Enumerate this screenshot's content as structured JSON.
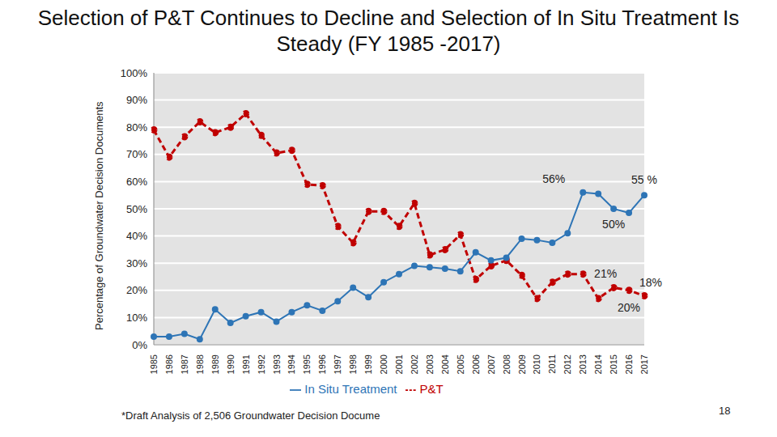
{
  "chart_data": {
    "type": "line",
    "title": "Selection of P&T Continues to Decline and Selection of In Situ Treatment Is Steady  (FY 1985 -2017)",
    "y_label": "Percentage of Groundwater Decision Documents",
    "footnote": "*Draft Analysis of 2,506 Groundwater Decision Docume",
    "page_number": "18",
    "categories": [
      "1985",
      "1986",
      "1987",
      "1988",
      "1989",
      "1990",
      "1991",
      "1992",
      "1993",
      "1994",
      "1995",
      "1996",
      "1997",
      "1998",
      "1999",
      "2000",
      "2001",
      "2002",
      "2003",
      "2004",
      "2005",
      "2006",
      "2007",
      "2008",
      "2009",
      "2010",
      "2011",
      "2012",
      "2013",
      "2014",
      "2015",
      "2016",
      "2017"
    ],
    "series": [
      {
        "name": "P&T",
        "color": "#c00000",
        "line_style": "dashed",
        "marker": "circle",
        "values": [
          79,
          69,
          76.5,
          82,
          78,
          80,
          85,
          77,
          70.5,
          71.5,
          59,
          58.5,
          43.5,
          37.5,
          49,
          49,
          43.5,
          52,
          33,
          35,
          40.5,
          24,
          29,
          31,
          25.5,
          17,
          23,
          26,
          26,
          17,
          21,
          20,
          18
        ]
      },
      {
        "name": "In Situ Treatment",
        "color": "#2e75b6",
        "line_style": "solid",
        "marker": "circle",
        "values": [
          3,
          3,
          4,
          2,
          13,
          8,
          10.5,
          12,
          8.5,
          12,
          14.5,
          12.5,
          16,
          21,
          17.5,
          23,
          26,
          29,
          28.5,
          28,
          27,
          34,
          31,
          32,
          39,
          38.5,
          37.5,
          41,
          56,
          55.5,
          50,
          48.5,
          55
        ]
      }
    ],
    "annotations": [
      {
        "text": "56%",
        "series": "In Situ Treatment",
        "x": "2013"
      },
      {
        "text": "55 %",
        "series": "In Situ Treatment",
        "x": "2017"
      },
      {
        "text": "50%",
        "series": "In Situ Treatment",
        "x": "2015"
      },
      {
        "text": "21%",
        "series": "P&T",
        "x": "2015"
      },
      {
        "text": "18%",
        "series": "P&T",
        "x": "2017"
      },
      {
        "text": "20%",
        "series": "P&T",
        "x": "2016"
      }
    ],
    "ylim": [
      0,
      100
    ],
    "yticks": [
      {
        "value": 0,
        "label": "0%"
      },
      {
        "value": 10,
        "label": "10%"
      },
      {
        "value": 20,
        "label": "20%"
      },
      {
        "value": 30,
        "label": "30%"
      },
      {
        "value": 40,
        "label": "40%"
      },
      {
        "value": 50,
        "label": "50%"
      },
      {
        "value": 60,
        "label": "60%"
      },
      {
        "value": 70,
        "label": "70%"
      },
      {
        "value": 80,
        "label": "80%"
      },
      {
        "value": 90,
        "label": "90%"
      },
      {
        "value": 100,
        "label": "100%"
      }
    ],
    "grid": true,
    "legend": "bottom"
  }
}
